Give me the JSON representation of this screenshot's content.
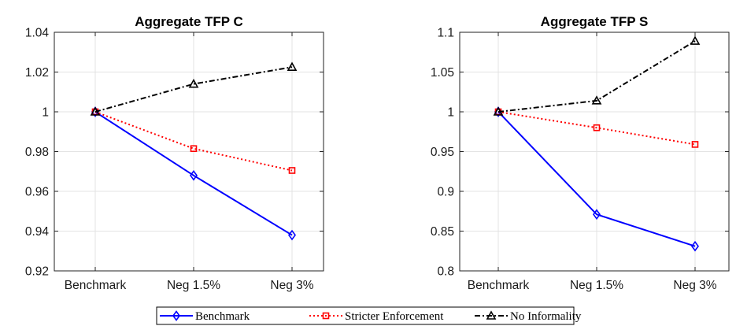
{
  "chart_data": [
    {
      "type": "line",
      "title": "Aggregate TFP C",
      "categories": [
        "Benchmark",
        "Neg 1.5%",
        "Neg 3%"
      ],
      "ylim": [
        0.92,
        1.04
      ],
      "yticks": [
        0.92,
        0.94,
        0.96,
        0.98,
        1,
        1.02,
        1.04
      ],
      "ytick_labels": [
        "0.92",
        "0.94",
        "0.96",
        "0.98",
        "1",
        "1.02",
        "1.04"
      ],
      "grid": true,
      "series": [
        {
          "name": "Benchmark",
          "values": [
            1.0,
            0.968,
            0.938
          ],
          "color": "#0000ff",
          "marker": "diamond",
          "dash": "solid"
        },
        {
          "name": "Stricter Enforcement",
          "values": [
            1.0,
            0.9815,
            0.9705
          ],
          "color": "#ff0000",
          "marker": "square",
          "dash": "dotted"
        },
        {
          "name": "No Informality",
          "values": [
            1.0,
            1.014,
            1.0225
          ],
          "color": "#000000",
          "marker": "triangle",
          "dash": "dashdot"
        }
      ]
    },
    {
      "type": "line",
      "title": "Aggregate TFP S",
      "categories": [
        "Benchmark",
        "Neg 1.5%",
        "Neg 3%"
      ],
      "ylim": [
        0.8,
        1.1
      ],
      "yticks": [
        0.8,
        0.85,
        0.9,
        0.95,
        1,
        1.05,
        1.1
      ],
      "ytick_labels": [
        "0.8",
        "0.85",
        "0.9",
        "0.95",
        "1",
        "1.05",
        "1.1"
      ],
      "grid": true,
      "series": [
        {
          "name": "Benchmark",
          "values": [
            1.0,
            0.871,
            0.831
          ],
          "color": "#0000ff",
          "marker": "diamond",
          "dash": "solid"
        },
        {
          "name": "Stricter Enforcement",
          "values": [
            1.0,
            0.98,
            0.959
          ],
          "color": "#ff0000",
          "marker": "square",
          "dash": "dotted"
        },
        {
          "name": "No Informality",
          "values": [
            1.0,
            1.014,
            1.089
          ],
          "color": "#000000",
          "marker": "triangle",
          "dash": "dashdot"
        }
      ]
    }
  ],
  "legend": {
    "placement": "bottom-center",
    "entries": [
      "Benchmark",
      "Stricter Enforcement",
      "No Informality"
    ]
  }
}
